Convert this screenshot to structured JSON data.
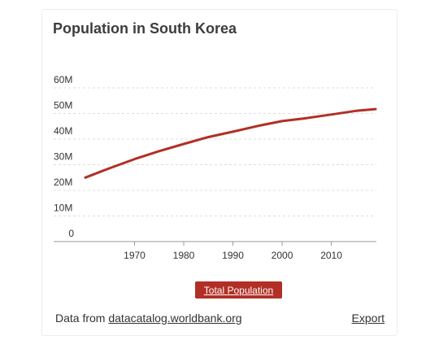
{
  "title": "Population in South Korea",
  "chart_data": {
    "type": "line",
    "title": "Population in South Korea",
    "xlabel": "",
    "ylabel": "",
    "xlim": [
      1960,
      2019
    ],
    "ylim": [
      0,
      60
    ],
    "xticks": [
      1970,
      1980,
      1990,
      2000,
      2010
    ],
    "yticks": [
      0,
      10,
      20,
      30,
      40,
      50,
      60
    ],
    "ytick_labels": [
      "0",
      "10M",
      "20M",
      "30M",
      "40M",
      "50M",
      "60M"
    ],
    "grid": true,
    "legend": "bottom-center",
    "series": [
      {
        "name": "Total Population",
        "color": "#b22f26",
        "x": [
          1960,
          1965,
          1970,
          1975,
          1980,
          1985,
          1990,
          1995,
          2000,
          2005,
          2010,
          2015,
          2019
        ],
        "y": [
          25.0,
          28.7,
          32.2,
          35.3,
          38.1,
          40.8,
          42.9,
          45.1,
          47.0,
          48.2,
          49.6,
          51.0,
          51.7
        ]
      }
    ]
  },
  "legend": {
    "label": "Total Population"
  },
  "footer": {
    "source_prefix": "Data from",
    "source_link": "datacatalog.worldbank.org",
    "export_label": "Export"
  },
  "colors": {
    "accent": "#b22f26",
    "grid": "#dddddd",
    "axis": "#999999"
  }
}
